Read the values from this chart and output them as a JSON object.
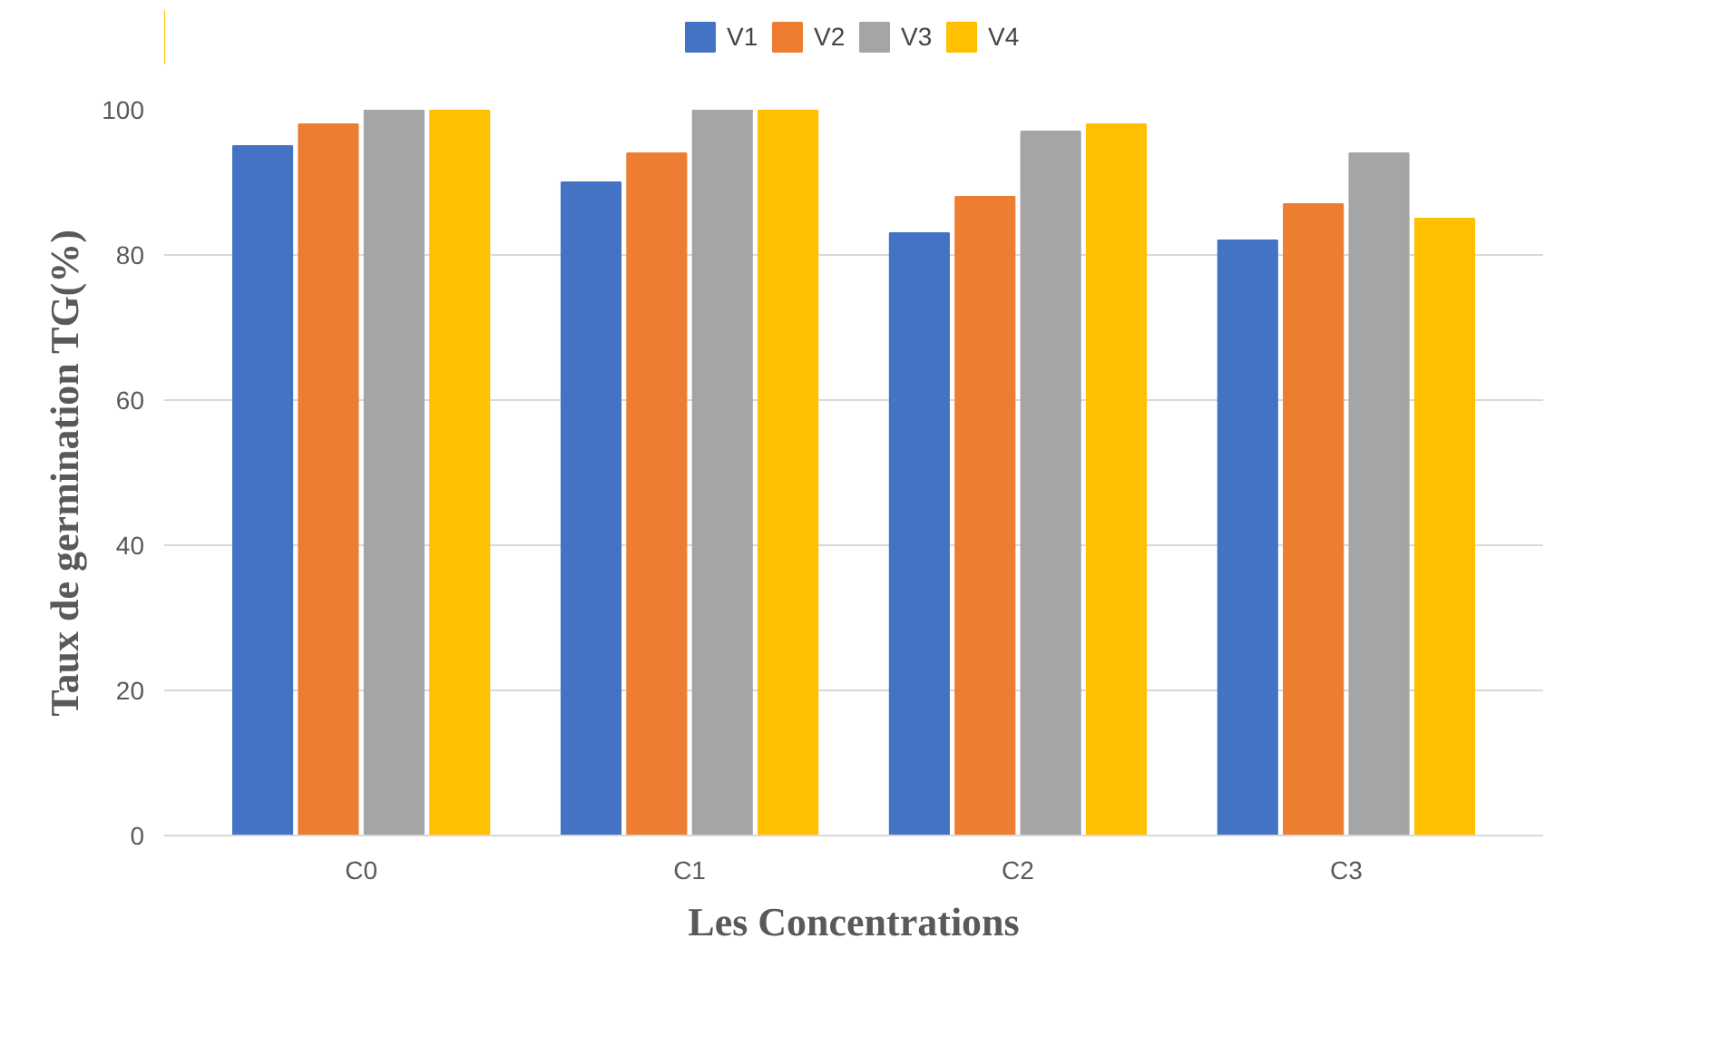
{
  "chart_data": {
    "type": "bar",
    "xlabel": "Les Concentrations",
    "ylabel": "Taux de germination TG(%)",
    "categories": [
      "C0",
      "C1",
      "C2",
      "C3"
    ],
    "series": [
      {
        "name": "V1",
        "color": "#4472c4",
        "values": [
          95,
          90,
          83,
          82
        ]
      },
      {
        "name": "V2",
        "color": "#ed7d31",
        "values": [
          98,
          94,
          88,
          87
        ]
      },
      {
        "name": "V3",
        "color": "#a5a5a5",
        "values": [
          100,
          100,
          97,
          94
        ]
      },
      {
        "name": "V4",
        "color": "#ffc000",
        "values": [
          100,
          100,
          98,
          85
        ]
      }
    ],
    "ylim": [
      0,
      100
    ],
    "yticks": [
      0,
      20,
      40,
      60,
      80,
      100
    ],
    "grid": "y",
    "legend": "top"
  }
}
